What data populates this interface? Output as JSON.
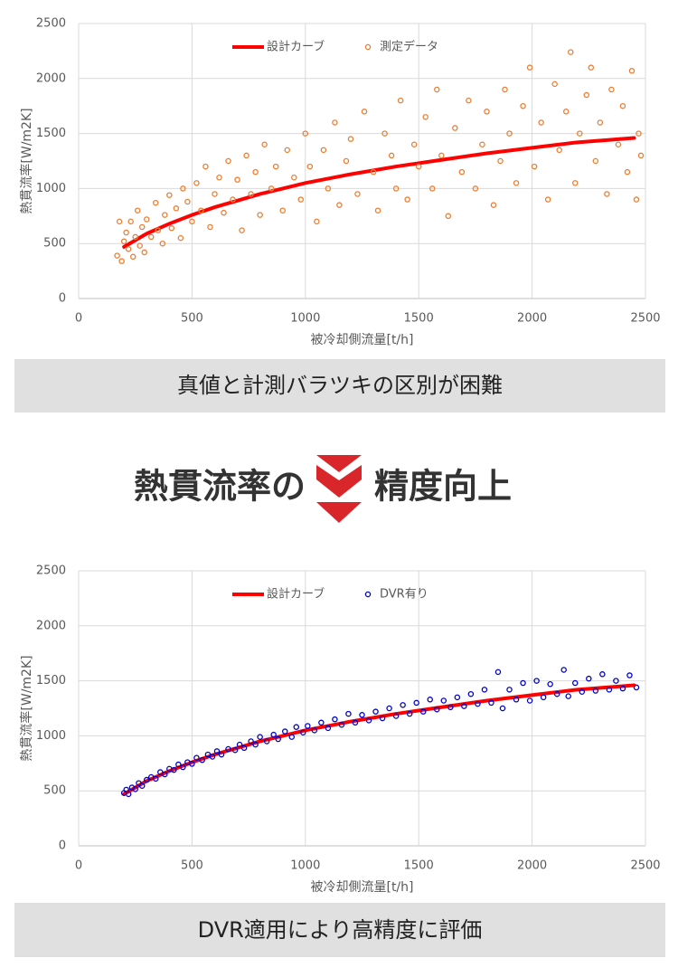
{
  "chart_data": [
    {
      "type": "scatter",
      "x_label": "被冷却側流量[t/h]",
      "y_label": "熱貫流率[W/m2K]",
      "xlim": [
        0,
        2500
      ],
      "xticks": [
        0,
        500,
        1000,
        1500,
        2000,
        2500
      ],
      "ylim": [
        0,
        2500
      ],
      "yticks": [
        0,
        500,
        1000,
        1500,
        2000,
        2500
      ],
      "grid": true,
      "legend": "top",
      "series": [
        {
          "name": "設計カーブ",
          "color": "#ff0000",
          "type": "line",
          "x": [
            200,
            300,
            400,
            500,
            600,
            700,
            800,
            900,
            1000,
            1200,
            1400,
            1600,
            1800,
            2000,
            2200,
            2450
          ],
          "values": [
            470,
            590,
            680,
            760,
            830,
            890,
            950,
            1000,
            1050,
            1130,
            1200,
            1260,
            1320,
            1370,
            1420,
            1460
          ]
        },
        {
          "name": "測定データ",
          "color": "#ed7d31",
          "type": "scatter",
          "x": [
            170,
            180,
            190,
            200,
            210,
            220,
            230,
            240,
            250,
            260,
            270,
            280,
            290,
            300,
            320,
            340,
            350,
            370,
            380,
            400,
            410,
            430,
            450,
            460,
            480,
            500,
            520,
            540,
            560,
            580,
            600,
            620,
            640,
            660,
            680,
            700,
            720,
            740,
            760,
            780,
            800,
            820,
            850,
            870,
            900,
            920,
            950,
            980,
            1000,
            1020,
            1050,
            1080,
            1100,
            1130,
            1150,
            1180,
            1200,
            1230,
            1260,
            1300,
            1320,
            1350,
            1380,
            1400,
            1420,
            1450,
            1480,
            1500,
            1530,
            1560,
            1580,
            1600,
            1630,
            1660,
            1690,
            1720,
            1750,
            1780,
            1800,
            1830,
            1860,
            1880,
            1900,
            1930,
            1960,
            1990,
            2010,
            2040,
            2070,
            2100,
            2120,
            2150,
            2170,
            2190,
            2210,
            2240,
            2260,
            2280,
            2300,
            2330,
            2350,
            2380,
            2400,
            2420,
            2440,
            2460,
            2470,
            2480
          ],
          "values": [
            390,
            700,
            340,
            520,
            600,
            450,
            700,
            380,
            560,
            800,
            480,
            650,
            420,
            720,
            560,
            870,
            620,
            500,
            760,
            940,
            640,
            820,
            550,
            1000,
            880,
            700,
            1050,
            800,
            1200,
            650,
            950,
            1100,
            780,
            1250,
            900,
            1080,
            620,
            1300,
            950,
            1150,
            760,
            1400,
            1000,
            1200,
            800,
            1350,
            1100,
            900,
            1500,
            1200,
            700,
            1350,
            1000,
            1600,
            850,
            1250,
            1450,
            950,
            1700,
            1150,
            800,
            1500,
            1300,
            1000,
            1800,
            900,
            1400,
            1200,
            1650,
            1000,
            1900,
            1300,
            750,
            1550,
            1150,
            1800,
            1000,
            1400,
            1700,
            850,
            1250,
            1900,
            1500,
            1050,
            1750,
            2100,
            1200,
            1600,
            900,
            1950,
            1350,
            1700,
            2240,
            1050,
            1500,
            1850,
            2100,
            1250,
            1600,
            950,
            1900,
            1400,
            1750,
            1150,
            2070,
            900,
            1500,
            1300
          ]
        }
      ]
    },
    {
      "type": "scatter",
      "x_label": "被冷却側流量[t/h]",
      "y_label": "熱貫流率[W/m2K]",
      "xlim": [
        0,
        2500
      ],
      "xticks": [
        0,
        500,
        1000,
        1500,
        2000,
        2500
      ],
      "ylim": [
        0,
        2500
      ],
      "yticks": [
        0,
        500,
        1000,
        1500,
        2000,
        2500
      ],
      "grid": true,
      "legend": "top",
      "series": [
        {
          "name": "設計カーブ",
          "color": "#ff0000",
          "type": "line",
          "x": [
            200,
            300,
            400,
            500,
            600,
            700,
            800,
            900,
            1000,
            1200,
            1400,
            1600,
            1800,
            2000,
            2200,
            2450
          ],
          "values": [
            470,
            590,
            680,
            760,
            830,
            890,
            950,
            1000,
            1050,
            1130,
            1200,
            1260,
            1320,
            1370,
            1420,
            1460
          ]
        },
        {
          "name": "DVR有り",
          "color": "#0000cc",
          "type": "scatter",
          "x": [
            200,
            210,
            220,
            235,
            250,
            265,
            280,
            300,
            320,
            340,
            360,
            380,
            400,
            420,
            440,
            460,
            480,
            500,
            520,
            545,
            570,
            590,
            610,
            630,
            660,
            690,
            710,
            730,
            760,
            780,
            800,
            830,
            860,
            880,
            910,
            940,
            960,
            990,
            1010,
            1040,
            1070,
            1100,
            1130,
            1160,
            1190,
            1220,
            1250,
            1280,
            1310,
            1340,
            1370,
            1400,
            1430,
            1460,
            1490,
            1520,
            1550,
            1580,
            1610,
            1640,
            1670,
            1700,
            1730,
            1760,
            1790,
            1820,
            1850,
            1870,
            1900,
            1930,
            1960,
            1990,
            2020,
            2050,
            2080,
            2110,
            2140,
            2160,
            2190,
            2220,
            2250,
            2280,
            2310,
            2340,
            2370,
            2400,
            2430,
            2460
          ],
          "values": [
            480,
            510,
            470,
            530,
            515,
            570,
            545,
            600,
            625,
            610,
            670,
            650,
            700,
            690,
            740,
            715,
            760,
            745,
            800,
            780,
            830,
            810,
            860,
            830,
            880,
            870,
            920,
            890,
            950,
            920,
            990,
            950,
            1010,
            970,
            1040,
            990,
            1080,
            1030,
            1090,
            1050,
            1120,
            1070,
            1150,
            1100,
            1200,
            1120,
            1190,
            1140,
            1220,
            1160,
            1250,
            1180,
            1280,
            1200,
            1300,
            1220,
            1330,
            1240,
            1320,
            1260,
            1350,
            1270,
            1380,
            1290,
            1420,
            1300,
            1580,
            1250,
            1420,
            1330,
            1480,
            1320,
            1500,
            1350,
            1470,
            1380,
            1600,
            1360,
            1480,
            1400,
            1520,
            1410,
            1560,
            1420,
            1500,
            1430,
            1550,
            1440
          ]
        }
      ]
    }
  ],
  "banners": [
    "真値と計測バラツキの区別が困難",
    "DVR適用により高精度に評価"
  ],
  "heading": {
    "left": "熱貫流率の",
    "right": "精度向上"
  }
}
